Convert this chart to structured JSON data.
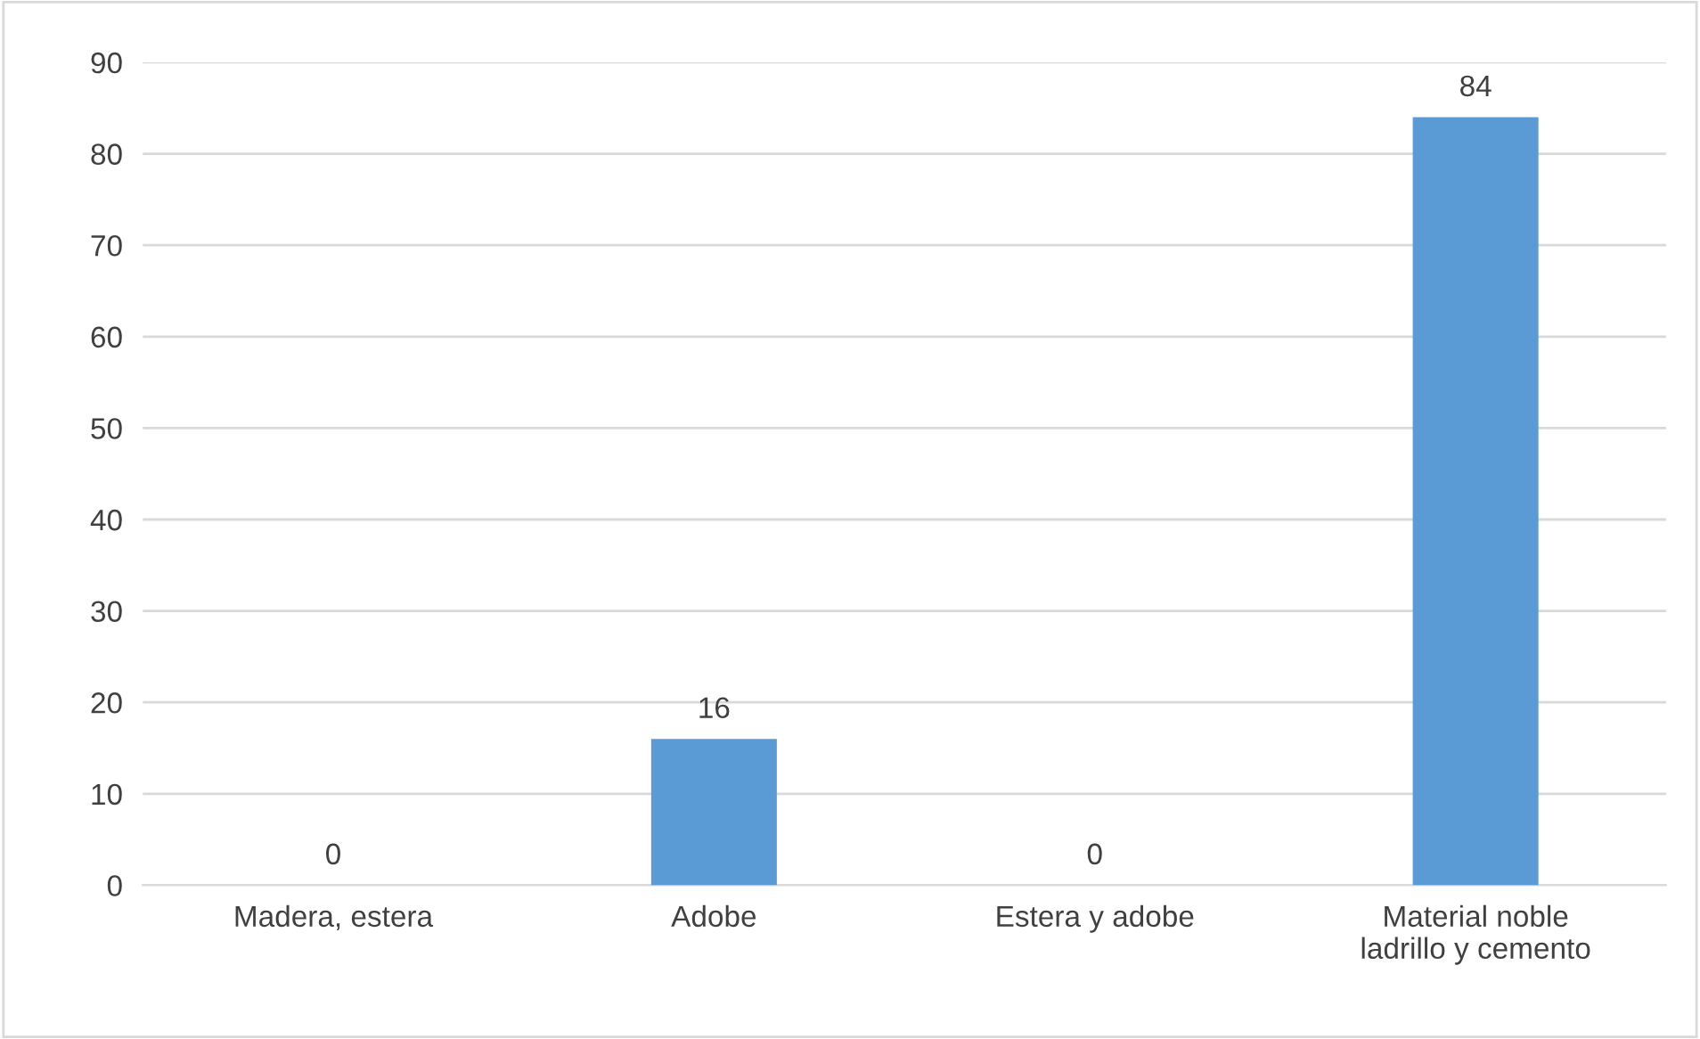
{
  "chart_data": {
    "type": "bar",
    "categories": [
      "Madera, estera",
      "Adobe",
      "Estera y adobe",
      "Material noble\nladrillo y cemento"
    ],
    "values": [
      0,
      16,
      0,
      84
    ],
    "color": "#5b9bd5",
    "ylim": [
      0,
      90
    ],
    "yticks": [
      0,
      10,
      20,
      30,
      40,
      50,
      60,
      70,
      80,
      90
    ],
    "grid": "y",
    "data_labels": true
  }
}
